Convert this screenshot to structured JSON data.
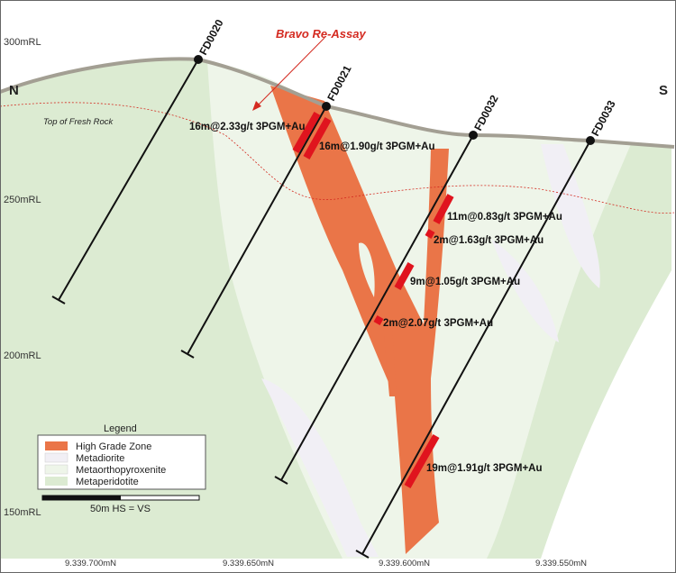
{
  "direction": {
    "left": "N",
    "right": "S"
  },
  "elevation_labels": [
    "300mRL",
    "250mRL",
    "200mRL",
    "150mRL"
  ],
  "easting_labels": [
    "9.339.700mN",
    "9.339.650mN",
    "9.339.600mN",
    "9.339.550mN"
  ],
  "annotations": {
    "bravo": "Bravo Re-Assay",
    "fresh_rock": "Top of Fresh Rock"
  },
  "drill_holes": [
    {
      "name": "FD0020"
    },
    {
      "name": "FD0021"
    },
    {
      "name": "FD0032"
    },
    {
      "name": "FD0033"
    }
  ],
  "intercepts": [
    "16m@2.33g/t 3PGM+Au",
    "16m@1.90g/t 3PGM+Au",
    "11m@0.83g/t 3PGM+Au",
    "2m@1.63g/t 3PGM+Au",
    "9m@1.05g/t 3PGM+Au",
    "2m@2.07g/t 3PGM+Au",
    "19m@1.91g/t 3PGM+Au"
  ],
  "legend": {
    "title": "Legend",
    "items": [
      "High Grade Zone",
      "Metadiorite",
      "Metaorthopyroxenite",
      "Metaperidotite"
    ]
  },
  "scale": "50m  HS = VS"
}
